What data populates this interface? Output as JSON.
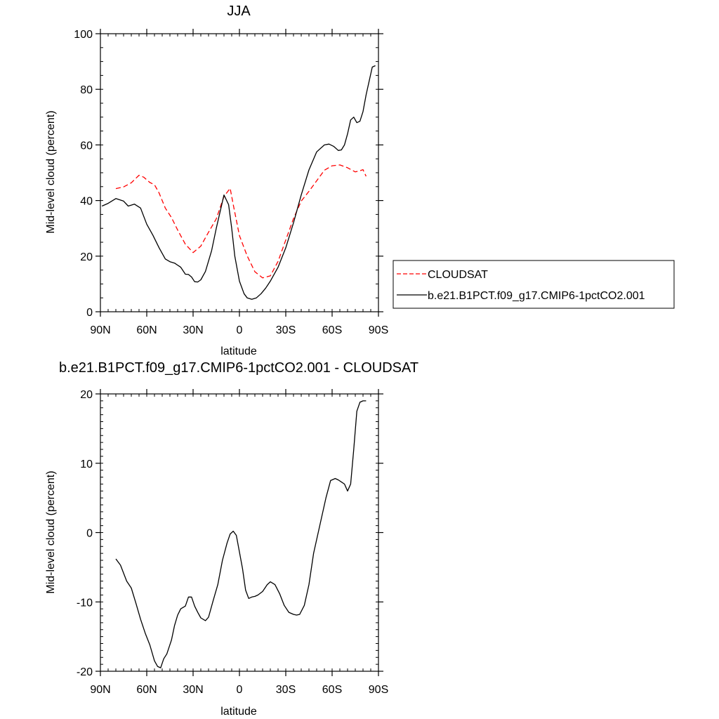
{
  "chart_data": [
    {
      "type": "line",
      "title": "JJA",
      "xlabel": "latitude",
      "ylabel": "Mid-level cloud (percent)",
      "xlim": [
        90,
        -90
      ],
      "ylim": [
        0,
        100
      ],
      "x_ticks": [
        {
          "value": 90,
          "label": "90N"
        },
        {
          "value": 60,
          "label": "60N"
        },
        {
          "value": 30,
          "label": "30N"
        },
        {
          "value": 0,
          "label": "0"
        },
        {
          "value": -30,
          "label": "30S"
        },
        {
          "value": -60,
          "label": "60S"
        },
        {
          "value": -90,
          "label": "90S"
        }
      ],
      "y_ticks": [
        0,
        20,
        40,
        60,
        80,
        100
      ],
      "legend": {
        "placement": "right",
        "entries": [
          {
            "name": "CLOUDSAT",
            "color": "#ff0000",
            "style": "dashed"
          },
          {
            "name": "b.e21.B1PCT.f09_g17.CMIP6-1pctCO2.001",
            "color": "#000000",
            "style": "solid"
          }
        ]
      },
      "series": [
        {
          "name": "CLOUDSAT",
          "color": "#ff0000",
          "style": "dashed",
          "x": [
            80,
            75,
            70,
            65,
            62,
            58,
            55,
            52,
            48,
            44,
            40,
            35,
            30,
            25,
            20,
            15,
            10,
            6,
            4,
            0,
            -5,
            -10,
            -15,
            -20,
            -25,
            -30,
            -35,
            -40,
            -45,
            -50,
            -55,
            -60,
            -65,
            -70,
            -75,
            -78,
            -80,
            -82
          ],
          "y": [
            44.3,
            44.9,
            46.4,
            49.1,
            48.4,
            46.5,
            45.7,
            42.7,
            37.3,
            33.9,
            29.4,
            24.3,
            21.3,
            23.6,
            28.6,
            33.4,
            41.5,
            44.4,
            38.5,
            27.4,
            20.1,
            14.4,
            12.2,
            12.9,
            18.1,
            25.8,
            33.5,
            39.8,
            43.3,
            47.1,
            50.9,
            52.5,
            52.8,
            51.8,
            50.3,
            50.7,
            51.1,
            48.7
          ]
        },
        {
          "name": "b.e21.B1PCT.f09_g17.CMIP6-1pctCO2.001",
          "color": "#000000",
          "style": "solid",
          "x": [
            89,
            85,
            80,
            75,
            72,
            68,
            64,
            60,
            56,
            52,
            48,
            45,
            42,
            38,
            35,
            33,
            31,
            29,
            27,
            25,
            22,
            18,
            15,
            10,
            7,
            5,
            3,
            0,
            -3,
            -5,
            -8,
            -11,
            -14,
            -17,
            -20,
            -25,
            -30,
            -35,
            -40,
            -45,
            -50,
            -55,
            -58,
            -61,
            -64,
            -66,
            -68,
            -70,
            -72,
            -74,
            -76,
            -78,
            -80,
            -82,
            -84,
            -86,
            -88
          ],
          "y": [
            38.0,
            39.0,
            40.7,
            39.8,
            38.0,
            38.7,
            37.3,
            31.5,
            27.5,
            23.0,
            19.0,
            18.0,
            17.5,
            16.0,
            13.5,
            13.4,
            12.5,
            10.8,
            10.7,
            11.5,
            14.5,
            22.0,
            30.0,
            42.0,
            38.5,
            30.0,
            20.0,
            11.0,
            6.5,
            5.0,
            4.5,
            5.0,
            6.5,
            8.5,
            11.0,
            16.0,
            23.0,
            32.0,
            42.0,
            51.0,
            57.5,
            60.0,
            60.3,
            59.5,
            58.0,
            58.2,
            60.0,
            64.0,
            69.0,
            70.0,
            68.0,
            68.5,
            72.0,
            78.0,
            83.0,
            88.0,
            88.5
          ]
        }
      ]
    },
    {
      "type": "line",
      "title": "b.e21.B1PCT.f09_g17.CMIP6-1pctCO2.001 - CLOUDSAT",
      "xlabel": "latitude",
      "ylabel": "Mid-level cloud (percent)",
      "xlim": [
        90,
        -90
      ],
      "ylim": [
        -20,
        20
      ],
      "x_ticks": [
        {
          "value": 90,
          "label": "90N"
        },
        {
          "value": 60,
          "label": "60N"
        },
        {
          "value": 30,
          "label": "30N"
        },
        {
          "value": 0,
          "label": "0"
        },
        {
          "value": -30,
          "label": "30S"
        },
        {
          "value": -60,
          "label": "60S"
        },
        {
          "value": -90,
          "label": "90S"
        }
      ],
      "y_ticks": [
        -20,
        -10,
        0,
        10,
        20
      ],
      "series": [
        {
          "color": "#000000",
          "style": "solid",
          "x": [
            80,
            77,
            73,
            70,
            67,
            64,
            61,
            58,
            55,
            53,
            51,
            49,
            47,
            44,
            42,
            40,
            38,
            35,
            33,
            31,
            29,
            27,
            25,
            22,
            20,
            17,
            14,
            11,
            8,
            6,
            4,
            2,
            0,
            -2,
            -4,
            -6,
            -8,
            -10,
            -12,
            -15,
            -18,
            -20,
            -23,
            -26,
            -29,
            -32,
            -35,
            -37,
            -39,
            -42,
            -45,
            -48,
            -52,
            -56,
            -59,
            -62,
            -64,
            -66,
            -68,
            -70,
            -72,
            -74,
            -76,
            -78,
            -80,
            -82
          ],
          "y": [
            -3.8,
            -4.7,
            -7.0,
            -8.0,
            -10.2,
            -12.5,
            -14.5,
            -16.2,
            -18.5,
            -19.3,
            -19.5,
            -18.2,
            -17.5,
            -15.5,
            -13.4,
            -11.9,
            -11.0,
            -10.6,
            -9.3,
            -9.3,
            -10.6,
            -11.5,
            -12.3,
            -12.7,
            -12.2,
            -9.8,
            -7.5,
            -4.0,
            -1.5,
            -0.2,
            0.2,
            -0.4,
            -2.8,
            -5.2,
            -8.3,
            -9.5,
            -9.3,
            -9.2,
            -9.0,
            -8.5,
            -7.5,
            -7.1,
            -7.5,
            -8.8,
            -10.5,
            -11.5,
            -11.8,
            -11.9,
            -11.8,
            -10.5,
            -7.5,
            -3.0,
            1.0,
            5.0,
            7.5,
            7.8,
            7.6,
            7.3,
            7.0,
            6.0,
            7.0,
            12.0,
            17.5,
            18.8,
            19.0,
            19.0
          ]
        }
      ]
    }
  ]
}
